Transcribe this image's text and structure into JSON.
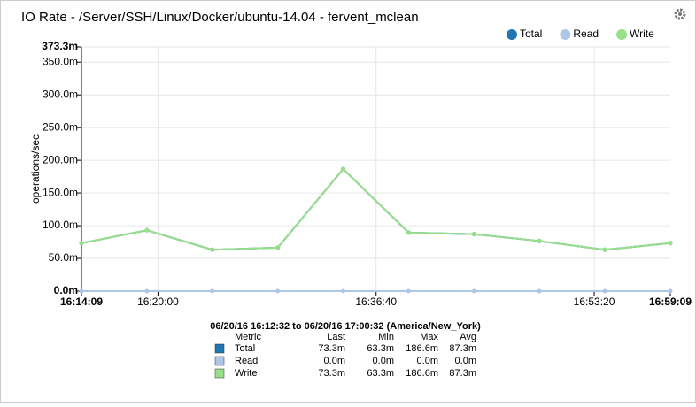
{
  "chart_data": {
    "type": "line",
    "title": "IO Rate - /Server/SSH/Linux/Docker/ubuntu-14.04 - fervent_mclean",
    "y_label": "operations/sec",
    "x": [
      "16:14:09",
      "16:19:09",
      "16:24:09",
      "16:29:09",
      "16:34:09",
      "16:39:09",
      "16:44:09",
      "16:49:09",
      "16:54:09",
      "16:59:09"
    ],
    "xlim": [
      "16:14:09",
      "16:59:09"
    ],
    "xticks": [
      "16:14:09",
      "16:20:00",
      "16:36:40",
      "16:53:20",
      "16:59:09"
    ],
    "ylim": [
      0,
      373.3
    ],
    "yticks": [
      {
        "value": 0,
        "label": "0.0m"
      },
      {
        "value": 50,
        "label": "50.0m"
      },
      {
        "value": 100,
        "label": "100.0m"
      },
      {
        "value": 150,
        "label": "150.0m"
      },
      {
        "value": 200,
        "label": "200.0m"
      },
      {
        "value": 250,
        "label": "250.0m"
      },
      {
        "value": 300,
        "label": "300.0m"
      },
      {
        "value": 350,
        "label": "350.0m"
      },
      {
        "value": 373.3,
        "label": "373.3m"
      }
    ],
    "grid": true,
    "legend": "top-right",
    "series": [
      {
        "name": "Total",
        "color": "#1f77b4",
        "values": [
          73.3,
          93,
          63.3,
          66.5,
          186.6,
          89.5,
          87,
          76.5,
          63.3,
          73.3
        ]
      },
      {
        "name": "Read",
        "color": "#aec7e8",
        "values": [
          0,
          0,
          0,
          0,
          0,
          0,
          0,
          0,
          0,
          0
        ]
      },
      {
        "name": "Write",
        "color": "#98df8a",
        "values": [
          73.3,
          93,
          63.3,
          66.5,
          186.6,
          89.5,
          87,
          76.5,
          63.3,
          73.3
        ]
      }
    ]
  },
  "summary": {
    "range": "06/20/16 16:12:32 to 06/20/16 17:00:32 (America/New_York)",
    "header": [
      "Metric",
      "Last",
      "Min",
      "Max",
      "Avg"
    ],
    "rows": [
      [
        "Total",
        "73.3m",
        "63.3m",
        "186.6m",
        "87.3m"
      ],
      [
        "Read",
        "0.0m",
        "0.0m",
        "0.0m",
        "0.0m"
      ],
      [
        "Write",
        "73.3m",
        "63.3m",
        "186.6m",
        "87.3m"
      ]
    ]
  }
}
